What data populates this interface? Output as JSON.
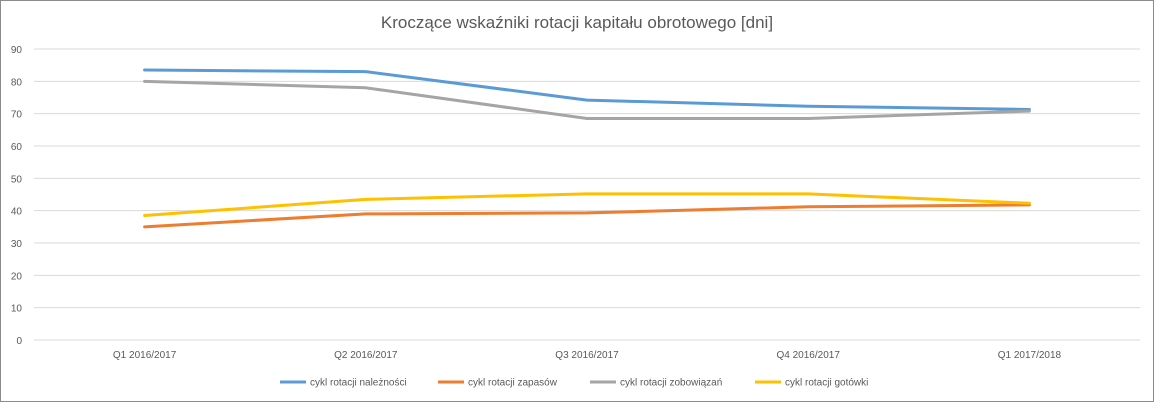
{
  "chart_data": {
    "type": "line",
    "title": "Kroczące wskaźniki rotacji kapitału obrotowego [dni]",
    "categories": [
      "Q1 2016/2017",
      "Q2 2016/2017",
      "Q3 2016/2017",
      "Q4 2016/2017",
      "Q1 2017/2018"
    ],
    "ylim": [
      0,
      90
    ],
    "yticks": [
      0,
      10,
      20,
      30,
      40,
      50,
      60,
      70,
      80,
      90
    ],
    "grid": true,
    "legend_position": "bottom",
    "series": [
      {
        "name": "cykl rotacji należności",
        "color": "#5b9bd5",
        "values": [
          83.5,
          83,
          74.2,
          72.3,
          71.3
        ]
      },
      {
        "name": "cykl rotacji zapasów",
        "color": "#ed7d31",
        "values": [
          35,
          39,
          39.3,
          41.2,
          41.8
        ]
      },
      {
        "name": "cykl rotacji zobowiązań",
        "color": "#a5a5a5",
        "values": [
          80,
          78,
          68.5,
          68.5,
          70.8
        ]
      },
      {
        "name": "cykl rotacji gotówki",
        "color": "#ffc000",
        "values": [
          38.5,
          43.5,
          45.2,
          45.2,
          42.3
        ]
      }
    ]
  }
}
